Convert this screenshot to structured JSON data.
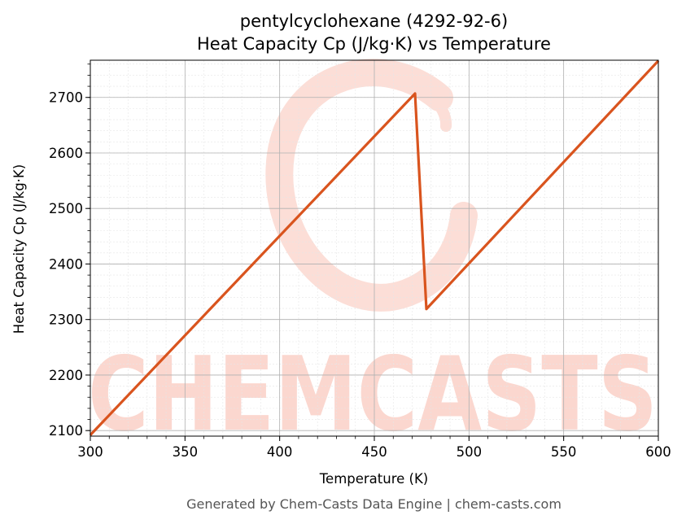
{
  "chart_data": {
    "type": "line",
    "title": "pentylcyclohexane (4292-92-6)",
    "subtitle": "Heat Capacity Cp (J/kg·K) vs Temperature",
    "xlabel": "Temperature (K)",
    "ylabel": "Heat Capacity Cp (J/kg·K)",
    "xlim": [
      300,
      600
    ],
    "ylim": [
      2090,
      2767
    ],
    "xticks": [
      300,
      350,
      400,
      450,
      500,
      550,
      600
    ],
    "yticks": [
      2100,
      2200,
      2300,
      2400,
      2500,
      2600,
      2700
    ],
    "grid": true,
    "series": [
      {
        "color": "#d9541e",
        "x": [
          300,
          471.5,
          477.5,
          600
        ],
        "y": [
          2092,
          2707,
          2319,
          2766
        ]
      }
    ]
  },
  "watermark": {
    "text": "CHEMCASTS",
    "color": "#fbd7cf"
  },
  "footer": "Generated by Chem-Casts Data Engine | chem-casts.com"
}
